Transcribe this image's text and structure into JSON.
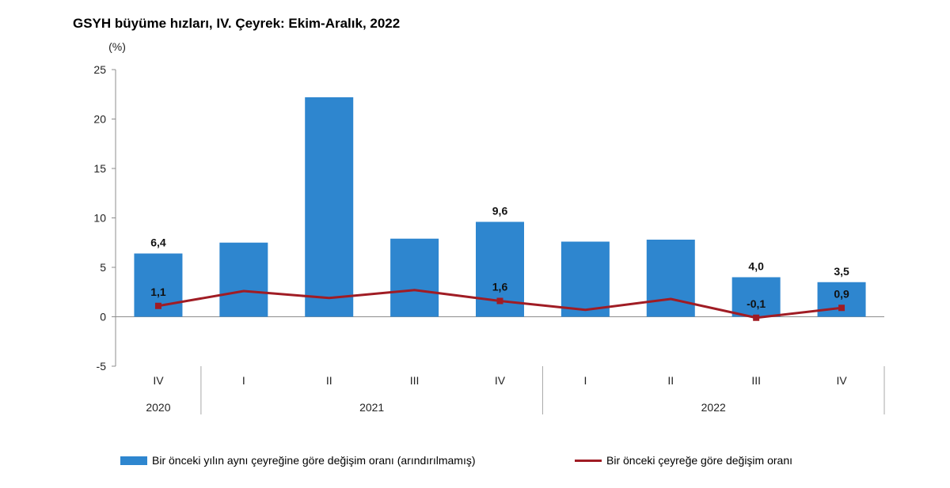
{
  "title": "GSYH büyüme hızları, IV. Çeyrek: Ekim-Aralık, 2022",
  "chart_data": {
    "type": "bar",
    "title": "GSYH büyüme hızları, IV. Çeyrek: Ekim-Aralık, 2022",
    "ylabel": "(%)",
    "ylim": [
      -5,
      25
    ],
    "yticks": [
      -5,
      0,
      5,
      10,
      15,
      20,
      25
    ],
    "categories": [
      "IV",
      "I",
      "II",
      "III",
      "IV",
      "I",
      "II",
      "III",
      "IV"
    ],
    "years": [
      {
        "label": "2020",
        "span": [
          0,
          0
        ]
      },
      {
        "label": "2021",
        "span": [
          1,
          4
        ]
      },
      {
        "label": "2022",
        "span": [
          5,
          8
        ]
      }
    ],
    "series": [
      {
        "name": "Bir önceki yılın aynı çeyreğine göre değişim oranı (arındırılmamış)",
        "type": "bar",
        "color": "#2E86CF",
        "values": [
          6.4,
          7.5,
          22.2,
          7.9,
          9.6,
          7.6,
          7.8,
          4.0,
          3.5
        ],
        "labels": [
          "6,4",
          "",
          "",
          "",
          "9,6",
          "",
          "",
          "4,0",
          "3,5"
        ]
      },
      {
        "name": "Bir önceki çeyreğe göre değişim oranı",
        "type": "line",
        "color": "#A01C24",
        "values": [
          1.1,
          2.6,
          1.9,
          2.7,
          1.6,
          0.7,
          1.8,
          -0.1,
          0.9
        ],
        "labels": [
          "1,1",
          "",
          "",
          "",
          "1,6",
          "",
          "",
          "-0,1",
          "0,9"
        ]
      }
    ],
    "grid": false,
    "legend_position": "bottom"
  }
}
